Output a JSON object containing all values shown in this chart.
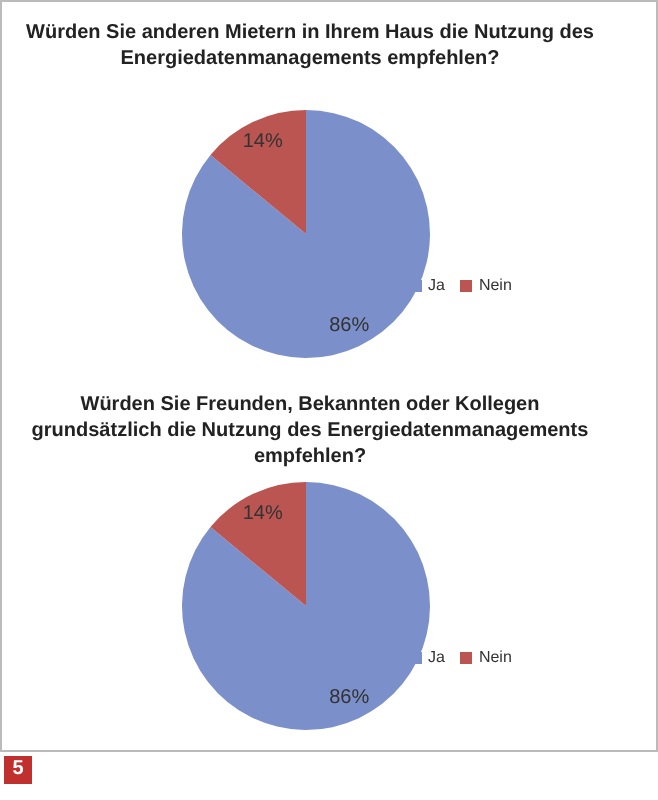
{
  "chart_data": [
    {
      "type": "pie",
      "title": "Würden Sie anderen Mietern in Ihrem Haus die Nutzung des Energiedatenmanagements empfehlen?",
      "categories": [
        "Ja",
        "Nein"
      ],
      "values": [
        86,
        14
      ],
      "value_labels": [
        "86%",
        "14%"
      ],
      "colors": [
        "#7b8fca",
        "#bb5551"
      ],
      "legend": "right"
    },
    {
      "type": "pie",
      "title": "Würden Sie Freunden, Bekannten oder Kollegen grundsätzlich die Nutzung des Energiedatenmanagements empfehlen?",
      "categories": [
        "Ja",
        "Nein"
      ],
      "values": [
        86,
        14
      ],
      "value_labels": [
        "86%",
        "14%"
      ],
      "colors": [
        "#7b8fca",
        "#bb5551"
      ],
      "legend": "right",
      "annotations": [
        "5"
      ]
    }
  ]
}
